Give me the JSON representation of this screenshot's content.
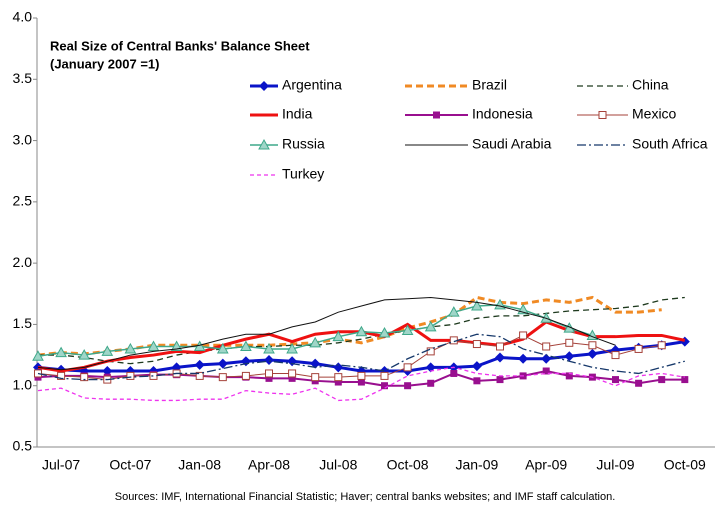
{
  "chart_data": {
    "type": "line",
    "title": "Real Size of Central Banks' Balance Sheet",
    "subtitle": "(January 2007 =1)",
    "source": "Sources: IMF, International Financial Statistic; Haver; central banks websites; and IMF staff calculation.",
    "categories": [
      null,
      "Jul-07",
      null,
      null,
      "Oct-07",
      null,
      null,
      "Jan-08",
      null,
      null,
      "Apr-08",
      null,
      null,
      "Jul-08",
      null,
      null,
      "Oct-08",
      null,
      null,
      "Jan-09",
      null,
      null,
      "Apr-09",
      null,
      null,
      "Jul-09",
      null,
      null,
      "Oct-09"
    ],
    "ylim": [
      0.5,
      4.0
    ],
    "yticks": [
      0.5,
      {
        "value": 1.0,
        "label": "1.0"
      },
      1.5,
      {
        "value": 2.0,
        "label": "2.0"
      },
      2.5,
      {
        "value": 3.0,
        "label": "3.0"
      },
      3.5,
      {
        "value": 4.0,
        "label": "4.0"
      }
    ],
    "grid": false,
    "series": [
      {
        "name": "Argentina",
        "color": "#0a14c8",
        "width": 3,
        "dash": "none",
        "marker": "diamond",
        "values": [
          1.15,
          1.13,
          1.12,
          1.12,
          1.12,
          1.12,
          1.15,
          1.17,
          1.18,
          1.2,
          1.21,
          1.2,
          1.18,
          1.15,
          1.12,
          1.12,
          1.12,
          1.15,
          1.15,
          1.16,
          1.23,
          1.22,
          1.22,
          1.24,
          1.26,
          1.29,
          1.31,
          1.33,
          1.36
        ]
      },
      {
        "name": "Brazil",
        "color": "#f08a24",
        "width": 3,
        "dash": "7 4",
        "marker": "none",
        "values": [
          1.25,
          1.27,
          1.26,
          1.28,
          1.3,
          1.33,
          1.33,
          1.33,
          1.33,
          1.33,
          1.33,
          1.34,
          1.35,
          1.38,
          1.35,
          1.4,
          1.47,
          1.52,
          1.58,
          1.72,
          1.68,
          1.67,
          1.7,
          1.68,
          1.72,
          1.6,
          1.6,
          1.62,
          null
        ]
      },
      {
        "name": "China",
        "color": "#1e3a1e",
        "width": 1.3,
        "dash": "6 4",
        "marker": "none",
        "values": [
          1.25,
          1.25,
          1.23,
          1.2,
          1.18,
          1.2,
          1.25,
          1.28,
          1.3,
          1.32,
          1.32,
          1.33,
          1.33,
          1.35,
          1.38,
          1.42,
          1.45,
          1.48,
          1.5,
          1.55,
          1.57,
          1.57,
          1.59,
          1.61,
          1.62,
          1.63,
          1.65,
          1.7,
          1.72
        ]
      },
      {
        "name": "India",
        "color": "#ee1111",
        "width": 3,
        "dash": "none",
        "marker": "none",
        "values": [
          1.15,
          1.12,
          1.15,
          1.2,
          1.23,
          1.25,
          1.28,
          1.27,
          1.33,
          1.38,
          1.42,
          1.36,
          1.42,
          1.44,
          1.44,
          1.4,
          1.5,
          1.37,
          1.37,
          1.35,
          1.33,
          1.38,
          1.52,
          1.45,
          1.4,
          1.4,
          1.41,
          1.41,
          1.37
        ]
      },
      {
        "name": "Indonesia",
        "color": "#990f8f",
        "width": 2,
        "dash": "none",
        "marker": "square",
        "values": [
          1.07,
          1.08,
          1.08,
          1.07,
          1.08,
          1.09,
          1.09,
          1.08,
          1.07,
          1.07,
          1.06,
          1.06,
          1.04,
          1.03,
          1.03,
          1.0,
          1.0,
          1.02,
          1.1,
          1.04,
          1.05,
          1.08,
          1.12,
          1.08,
          1.07,
          1.05,
          1.02,
          1.05,
          1.05
        ]
      },
      {
        "name": "Mexico",
        "color": "#a5423a",
        "width": 1,
        "dash": "none",
        "marker": "open-square",
        "values": [
          1.1,
          1.08,
          1.07,
          1.05,
          1.08,
          1.08,
          1.1,
          1.08,
          1.07,
          1.08,
          1.1,
          1.1,
          1.07,
          1.07,
          1.08,
          1.08,
          1.15,
          1.28,
          1.37,
          1.34,
          1.32,
          1.41,
          1.32,
          1.35,
          1.33,
          1.25,
          1.3,
          1.33,
          null
        ]
      },
      {
        "name": "Russia",
        "color": "#3fa88a",
        "width": 1.5,
        "dash": "none",
        "marker": "triangle",
        "values": [
          1.24,
          1.27,
          1.25,
          1.28,
          1.3,
          1.32,
          1.32,
          1.32,
          1.3,
          1.32,
          1.3,
          1.3,
          1.35,
          1.4,
          1.44,
          1.43,
          1.45,
          1.48,
          1.6,
          1.65,
          1.66,
          1.62,
          1.55,
          1.47,
          1.41,
          null,
          null,
          null,
          null
        ]
      },
      {
        "name": "Saudi Arabia",
        "color": "#111111",
        "width": 1,
        "dash": "none",
        "marker": "none",
        "values": [
          1.15,
          1.13,
          1.15,
          1.2,
          1.25,
          1.28,
          1.3,
          1.33,
          1.38,
          1.42,
          1.42,
          1.48,
          1.52,
          1.6,
          1.65,
          1.7,
          1.71,
          1.72,
          1.7,
          1.68,
          1.65,
          1.6,
          1.55,
          1.48,
          1.4,
          1.33,
          null,
          null,
          null
        ]
      },
      {
        "name": "South Africa",
        "color": "#16386a",
        "width": 1.3,
        "dash": "9 3 2 3",
        "marker": "none",
        "values": [
          1.1,
          1.06,
          1.05,
          1.05,
          1.07,
          1.08,
          1.1,
          1.1,
          1.14,
          1.18,
          1.2,
          1.18,
          1.15,
          1.17,
          1.15,
          1.12,
          1.22,
          1.3,
          1.36,
          1.42,
          1.4,
          1.3,
          1.25,
          1.2,
          1.15,
          1.12,
          1.1,
          1.15,
          1.2
        ]
      },
      {
        "name": "Turkey",
        "color": "#ee33ee",
        "width": 1.3,
        "dash": "4 3",
        "marker": "none",
        "values": [
          0.96,
          0.98,
          0.9,
          0.89,
          0.89,
          0.88,
          0.88,
          0.89,
          0.89,
          0.96,
          0.94,
          0.93,
          0.98,
          0.88,
          0.89,
          0.98,
          1.08,
          1.12,
          1.15,
          1.1,
          1.08,
          1.08,
          1.1,
          1.1,
          1.07,
          1.0,
          1.08,
          1.1,
          1.07
        ]
      }
    ]
  }
}
